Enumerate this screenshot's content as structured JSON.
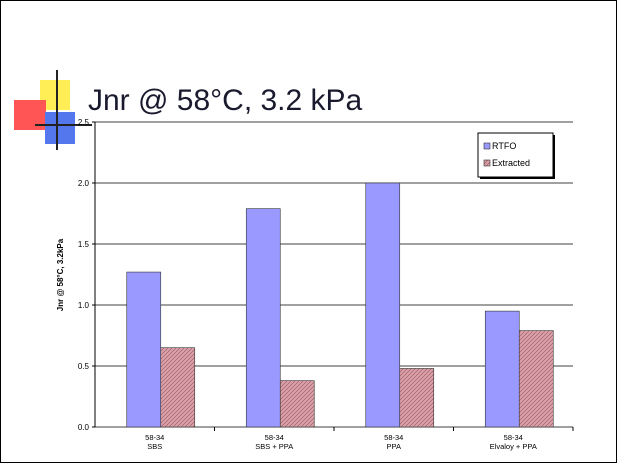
{
  "chart_data": {
    "type": "bar",
    "title": "Jnr @ 58°C, 3.2 kPa",
    "y_label": "Jnr @ 58°C, 3.2kPa",
    "categories": [
      [
        "58-34",
        "SBS"
      ],
      [
        "58-34",
        "SBS + PPA"
      ],
      [
        "58-34",
        "PPA"
      ],
      [
        "58-34",
        "Elvaloy + PPA"
      ]
    ],
    "series": [
      {
        "name": "RTFO",
        "color": "#9999ff",
        "values": [
          1.27,
          1.79,
          2.0,
          0.95
        ]
      },
      {
        "name": "Extracted",
        "color": "#dda0a8",
        "values": [
          0.65,
          0.38,
          0.48,
          0.79
        ]
      }
    ],
    "ylim": [
      0,
      2.5
    ],
    "yticks": [
      {
        "value": 0,
        "label": "0.0"
      },
      {
        "value": 0.5,
        "label": "0.5"
      },
      {
        "value": 1,
        "label": "1.0"
      },
      {
        "value": 1.5,
        "label": "1.5"
      },
      {
        "value": 2,
        "label": "2.0"
      },
      {
        "value": 2.5,
        "label": "2.5"
      }
    ],
    "grid": true,
    "legend": "top-right"
  }
}
